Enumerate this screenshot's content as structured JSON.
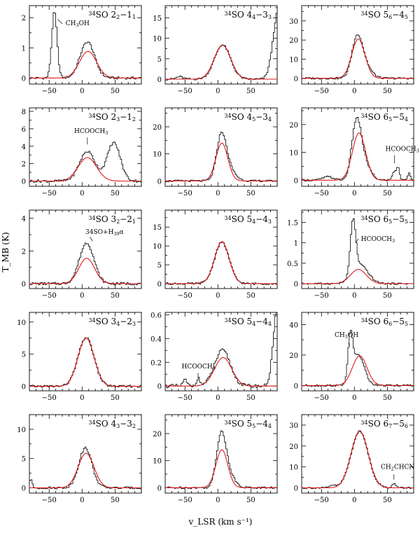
{
  "figure": {
    "ylabel": "T_MB (K)",
    "xlabel": "v_LSR (km s⁻¹)"
  },
  "chart_data": [
    {
      "type": "line",
      "panel": "2-1-1",
      "title": "34SO 2_2-1_1",
      "xlim": [
        -80,
        90
      ],
      "ylim": [
        -0.2,
        2.4
      ],
      "yticks": [
        0,
        1,
        2
      ],
      "xticks": [
        -50,
        0,
        50
      ],
      "observed": {
        "components": [
          {
            "center": 8,
            "amp": 1.2,
            "width": 11
          },
          {
            "center": -42,
            "amp": 2.2,
            "width": 4
          }
        ],
        "noise": 0.04
      },
      "model": {
        "components": [
          {
            "center": 9,
            "amp": 0.88,
            "width": 13
          }
        ]
      },
      "annotations": [
        {
          "text": "CH3OH",
          "x": -25,
          "y": 1.75,
          "lead": [
            [
              -37,
              1.95
            ],
            [
              -30,
              1.8
            ]
          ]
        }
      ]
    },
    {
      "type": "line",
      "panel": "4-3-3",
      "title": "34SO 4_4-3_3",
      "xlim": [
        -80,
        90
      ],
      "ylim": [
        -1.2,
        18
      ],
      "yticks": [
        0,
        5,
        10,
        15
      ],
      "xticks": [
        -50,
        0,
        50
      ],
      "observed": {
        "components": [
          {
            "center": 7,
            "amp": 8.4,
            "width": 12
          },
          {
            "center": 92,
            "amp": 17,
            "width": 8
          },
          {
            "center": -58,
            "amp": 0.6,
            "width": 5
          }
        ],
        "noise": 0.25
      },
      "model": {
        "components": [
          {
            "center": 7,
            "amp": 8.3,
            "width": 12.5
          }
        ]
      },
      "annotations": []
    },
    {
      "type": "line",
      "panel": "5-4-5",
      "title": "34SO 5_6-4_5",
      "xlim": [
        -80,
        90
      ],
      "ylim": [
        -3,
        38
      ],
      "yticks": [
        0,
        10,
        20,
        30
      ],
      "xticks": [
        -50,
        0,
        50
      ],
      "observed": {
        "components": [
          {
            "center": 4,
            "amp": 20,
            "width": 8
          },
          {
            "center": 16,
            "amp": 6,
            "width": 10
          }
        ],
        "noise": 0.5
      },
      "model": {
        "components": [
          {
            "center": 6,
            "amp": 20.5,
            "width": 10
          }
        ]
      },
      "annotations": []
    },
    {
      "type": "line",
      "panel": "2-3-2",
      "title": "34SO 2_3-1_2",
      "xlim": [
        -80,
        90
      ],
      "ylim": [
        -0.6,
        8.4
      ],
      "yticks": [
        0,
        2,
        4,
        6,
        8
      ],
      "xticks": [
        -50,
        0,
        50
      ],
      "observed": {
        "components": [
          {
            "center": 8,
            "amp": 3.4,
            "width": 12
          },
          {
            "center": 48,
            "amp": 4.4,
            "width": 10
          }
        ],
        "noise": 0.15
      },
      "model": {
        "components": [
          {
            "center": 8,
            "amp": 2.7,
            "width": 14
          }
        ]
      },
      "annotations": [
        {
          "text": "HCOOCH3",
          "x": -12,
          "y": 5.5,
          "lead": [
            [
              8,
              5.0
            ],
            [
              8,
              4.2
            ]
          ]
        }
      ]
    },
    {
      "type": "line",
      "panel": "4-5-4",
      "title": "34SO 4_5-3_4",
      "xlim": [
        -80,
        90
      ],
      "ylim": [
        -2,
        27
      ],
      "yticks": [
        0,
        10,
        20
      ],
      "xticks": [
        -50,
        0,
        50
      ],
      "observed": {
        "components": [
          {
            "center": 5,
            "amp": 15,
            "width": 7
          },
          {
            "center": 15,
            "amp": 5,
            "width": 10
          }
        ],
        "noise": 0.35
      },
      "model": {
        "components": [
          {
            "center": 6,
            "amp": 14,
            "width": 9
          }
        ]
      },
      "annotations": []
    },
    {
      "type": "line",
      "panel": "6-5-4",
      "title": "34SO 6_5-5_4",
      "xlim": [
        -80,
        90
      ],
      "ylim": [
        -2.2,
        26
      ],
      "yticks": [
        0,
        10,
        20
      ],
      "xticks": [
        -50,
        0,
        50
      ],
      "observed": {
        "components": [
          {
            "center": 3,
            "amp": 20,
            "width": 7
          },
          {
            "center": 15,
            "amp": 6,
            "width": 9
          },
          {
            "center": -40,
            "amp": 1.2,
            "width": 8
          },
          {
            "center": 60,
            "amp": 3,
            "width": 2.5
          },
          {
            "center": 66,
            "amp": 4.5,
            "width": 2.5
          },
          {
            "center": 83,
            "amp": 2.5,
            "width": 2.5
          }
        ],
        "noise": 0.35
      },
      "model": {
        "components": [
          {
            "center": 7,
            "amp": 17,
            "width": 10
          }
        ]
      },
      "annotations": [
        {
          "text": "HCOOCH3",
          "x": 47,
          "y": 10.5,
          "lead": [
            [
              61,
              9
            ],
            [
              61,
              6
            ]
          ]
        }
      ]
    },
    {
      "type": "line",
      "panel": "3-2-1",
      "title": "34SO 3_2-2_1",
      "xlim": [
        -80,
        90
      ],
      "ylim": [
        -0.3,
        4.5
      ],
      "yticks": [
        0,
        2,
        4
      ],
      "xticks": [
        -50,
        0,
        50
      ],
      "observed": {
        "components": [
          {
            "center": 7,
            "amp": 2.5,
            "width": 11
          }
        ],
        "noise": 0.08
      },
      "model": {
        "components": [
          {
            "center": 7,
            "amp": 1.55,
            "width": 12
          }
        ]
      },
      "annotations": [
        {
          "text": "34SO+H39α",
          "x": 5,
          "y": 3.05,
          "lead": [
            [
              12,
              2.85
            ],
            [
              16,
              2.6
            ]
          ]
        }
      ]
    },
    {
      "type": "line",
      "panel": "5-4-3",
      "title": "34SO 5_4-4_3",
      "xlim": [
        -80,
        90
      ],
      "ylim": [
        -1.3,
        19.5
      ],
      "yticks": [
        0,
        5,
        10,
        15
      ],
      "xticks": [
        -50,
        0,
        50
      ],
      "observed": {
        "components": [
          {
            "center": 6,
            "amp": 11,
            "width": 11
          }
        ],
        "noise": 0.25
      },
      "model": {
        "components": [
          {
            "center": 6,
            "amp": 11.1,
            "width": 11
          }
        ]
      },
      "annotations": []
    },
    {
      "type": "line",
      "panel": "6-5-5",
      "title": "34SO 6_5-5_5",
      "xlim": [
        -80,
        90
      ],
      "ylim": [
        -0.12,
        1.8
      ],
      "yticks": [
        0,
        0.5,
        1,
        1.5
      ],
      "xticks": [
        -50,
        0,
        50
      ],
      "observed": {
        "components": [
          {
            "center": -2,
            "amp": 1.3,
            "width": 4
          },
          {
            "center": 9,
            "amp": 0.45,
            "width": 12
          }
        ],
        "noise": 0.02
      },
      "model": {
        "components": [
          {
            "center": 6,
            "amp": 0.35,
            "width": 12
          }
        ]
      },
      "annotations": [
        {
          "text": "HCOOCH3",
          "x": 10,
          "y": 1.05,
          "lead": [
            [
              2,
              1.0
            ],
            [
              6,
              1.1
            ]
          ]
        }
      ]
    },
    {
      "type": "line",
      "panel": "3-4-2",
      "title": "34SO 3_4-2_3",
      "xlim": [
        -80,
        90
      ],
      "ylim": [
        -0.7,
        11.5
      ],
      "yticks": [
        0,
        5,
        10
      ],
      "xticks": [
        -50,
        0,
        50
      ],
      "observed": {
        "components": [
          {
            "center": 6,
            "amp": 7.6,
            "width": 12
          }
        ],
        "noise": 0.18
      },
      "model": {
        "components": [
          {
            "center": 6,
            "amp": 7.5,
            "width": 12.2
          }
        ]
      },
      "annotations": []
    },
    {
      "type": "line",
      "panel": "5-4-4",
      "title": "34SO 5_4-4_4",
      "xlim": [
        -80,
        90
      ],
      "ylim": [
        -0.04,
        0.62
      ],
      "yticks": [
        0,
        0.2,
        0.4,
        0.6
      ],
      "xticks": [
        -50,
        0,
        50
      ],
      "observed": {
        "components": [
          {
            "center": 7,
            "amp": 0.3,
            "width": 12
          },
          {
            "center": -30,
            "amp": 0.06,
            "width": 3
          },
          {
            "center": -50,
            "amp": 0.05,
            "width": 3
          },
          {
            "center": 90,
            "amp": 0.65,
            "width": 6
          }
        ],
        "noise": 0.015
      },
      "model": {
        "components": [
          {
            "center": 8,
            "amp": 0.24,
            "width": 13
          }
        ]
      },
      "annotations": [
        {
          "text": "HCOOCH3",
          "x": -55,
          "y": 0.15,
          "lead": [
            [
              -30,
              0.11
            ],
            [
              -30,
              0.07
            ]
          ]
        }
      ]
    },
    {
      "type": "line",
      "panel": "6-6-5",
      "title": "34SO 6_6-5_5",
      "xlim": [
        -80,
        90
      ],
      "ylim": [
        -3.5,
        48
      ],
      "yticks": [
        0,
        20,
        40
      ],
      "xticks": [
        -50,
        0,
        50
      ],
      "observed": {
        "components": [
          {
            "center": -6,
            "amp": 28,
            "width": 3.5
          },
          {
            "center": 6,
            "amp": 20,
            "width": 9
          }
        ],
        "noise": 0.6
      },
      "model": {
        "components": [
          {
            "center": 8,
            "amp": 19.5,
            "width": 11
          }
        ]
      },
      "annotations": [
        {
          "text": "CH3OH",
          "x": -30,
          "y": 32,
          "lead": [
            [
              -9,
              28
            ],
            [
              -7,
              26
            ]
          ]
        }
      ]
    },
    {
      "type": "line",
      "panel": "4-3-2",
      "title": "34SO 4_3-3_2",
      "xlim": [
        -80,
        90
      ],
      "ylim": [
        -0.9,
        12.5
      ],
      "yticks": [
        0,
        5,
        10
      ],
      "xticks": [
        -50,
        0,
        50
      ],
      "observed": {
        "components": [
          {
            "center": 5,
            "amp": 6.8,
            "width": 10
          },
          {
            "center": -78,
            "amp": 1.5,
            "width": 2
          }
        ],
        "noise": 0.2
      },
      "model": {
        "components": [
          {
            "center": 6,
            "amp": 5.9,
            "width": 12
          }
        ]
      },
      "annotations": []
    },
    {
      "type": "line",
      "panel": "5-5-4",
      "title": "34SO 5_5-4_4",
      "xlim": [
        -80,
        90
      ],
      "ylim": [
        -2,
        27
      ],
      "yticks": [
        0,
        10,
        20
      ],
      "xticks": [
        -50,
        0,
        50
      ],
      "observed": {
        "components": [
          {
            "center": 5,
            "amp": 18,
            "width": 7
          },
          {
            "center": 15,
            "amp": 5,
            "width": 10
          }
        ],
        "noise": 0.4
      },
      "model": {
        "components": [
          {
            "center": 6,
            "amp": 14,
            "width": 9
          }
        ]
      },
      "annotations": []
    },
    {
      "type": "line",
      "panel": "6-7-5",
      "title": "34SO 6_7-5_6",
      "xlim": [
        -80,
        90
      ],
      "ylim": [
        -2.5,
        35
      ],
      "yticks": [
        0,
        10,
        20,
        30
      ],
      "xticks": [
        -50,
        0,
        50
      ],
      "observed": {
        "components": [
          {
            "center": 8,
            "amp": 27,
            "width": 13
          },
          {
            "center": 60,
            "amp": 2,
            "width": 3
          },
          {
            "center": -33,
            "amp": 1.2,
            "width": 4
          }
        ],
        "noise": 0.4
      },
      "model": {
        "components": [
          {
            "center": 8,
            "amp": 27,
            "width": 13
          }
        ]
      },
      "annotations": [
        {
          "text": "CH2CHCN",
          "x": 40,
          "y": 9,
          "lead": [
            [
              60,
              6.5
            ],
            [
              60,
              4
            ]
          ]
        }
      ]
    }
  ]
}
